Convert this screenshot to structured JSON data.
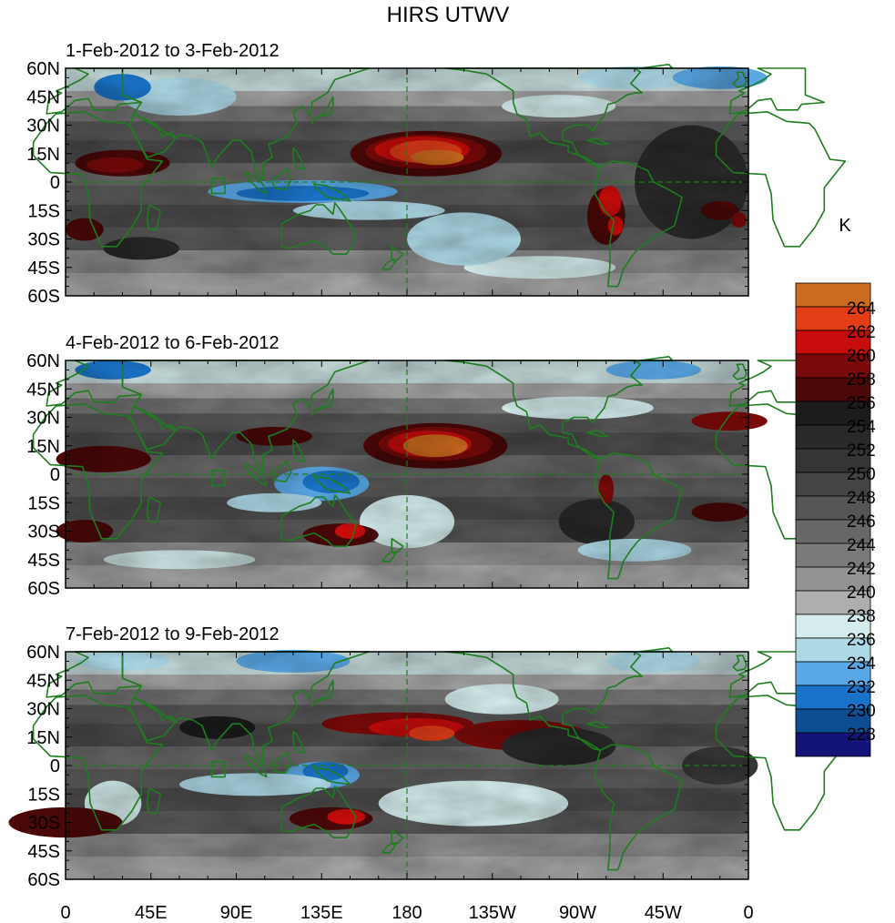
{
  "title": "HIRS UTWV",
  "panels": [
    {
      "subtitle": "1-Feb-2012 to 3-Feb-2012"
    },
    {
      "subtitle": "4-Feb-2012 to 6-Feb-2012"
    },
    {
      "subtitle": "7-Feb-2012 to 9-Feb-2012"
    }
  ],
  "lat_ticks": [
    "60N",
    "45N",
    "30N",
    "15N",
    "0",
    "15S",
    "30S",
    "45S",
    "60S"
  ],
  "lon_ticks": [
    "0",
    "45E",
    "90E",
    "135E",
    "180",
    "135W",
    "90W",
    "45W",
    "0"
  ],
  "colorbar": {
    "units": "K",
    "labels": [
      "264",
      "262",
      "260",
      "258",
      "256",
      "254",
      "252",
      "250",
      "248",
      "246",
      "244",
      "242",
      "240",
      "238",
      "236",
      "234",
      "232",
      "230",
      "228"
    ],
    "colors": [
      "#cc6a1e",
      "#e33d18",
      "#c80c0c",
      "#7a0a0a",
      "#4a0808",
      "#1c1c1c",
      "#292929",
      "#353535",
      "#444444",
      "#555555",
      "#676767",
      "#7a7a7a",
      "#939393",
      "#aeaeae",
      "#d4ecec",
      "#add8e6",
      "#5aa8e6",
      "#1a73c8",
      "#0d4e92",
      "#141478"
    ]
  },
  "coastline_color": "#1e7d1e",
  "dateline_color": "#1e7d1e"
}
